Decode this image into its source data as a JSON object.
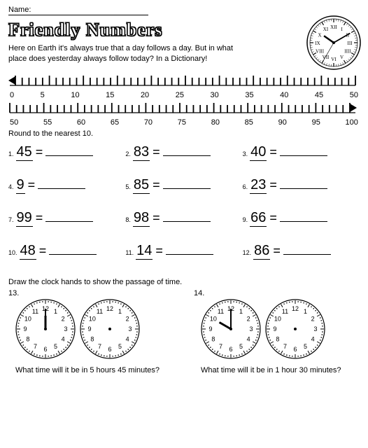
{
  "name_label": "Name:",
  "title": "Friendly Numbers",
  "riddle": "Here on Earth it's always true that a day follows a day. But in what place does yesterday always follow today? In a Dictionary!",
  "top_clock": {
    "diameter": 78,
    "face_color": "#ffffff",
    "border_color": "#000000",
    "numeral_color": "#000000",
    "hand_color": "#000000",
    "hour": 10,
    "minute": 10,
    "second": 35
  },
  "ruler": {
    "row1": {
      "start": 0,
      "end": 50,
      "step": 5,
      "arrow": "left"
    },
    "row2": {
      "start": 50,
      "end": 100,
      "step": 5,
      "arrow": "right"
    },
    "tick_color": "#000000",
    "label_fontsize": 11
  },
  "round_label": "Round to the nearest 10.",
  "problems": [
    {
      "n": "1.",
      "v": "45"
    },
    {
      "n": "2.",
      "v": "83"
    },
    {
      "n": "3.",
      "v": "40"
    },
    {
      "n": "4.",
      "v": "9"
    },
    {
      "n": "5.",
      "v": "85"
    },
    {
      "n": "6.",
      "v": "23"
    },
    {
      "n": "7.",
      "v": "99"
    },
    {
      "n": "8.",
      "v": "98"
    },
    {
      "n": "9.",
      "v": "66"
    },
    {
      "n": "10.",
      "v": "48"
    },
    {
      "n": "11.",
      "v": "14"
    },
    {
      "n": "12.",
      "v": "86"
    }
  ],
  "clock_section_label": "Draw the clock hands to show the passage of time.",
  "clock_problems": [
    {
      "n": "13.",
      "start": {
        "hour": 12,
        "minute": 0
      },
      "q": "What time will it be in 5 hours 45 minutes?"
    },
    {
      "n": "14.",
      "start": {
        "hour": 10,
        "minute": 0
      },
      "q": "What time will it be in 1 hour 30 minutes?"
    }
  ],
  "small_clock": {
    "diameter": 86,
    "face": "#ffffff",
    "border": "#000000",
    "text": "#000000"
  }
}
